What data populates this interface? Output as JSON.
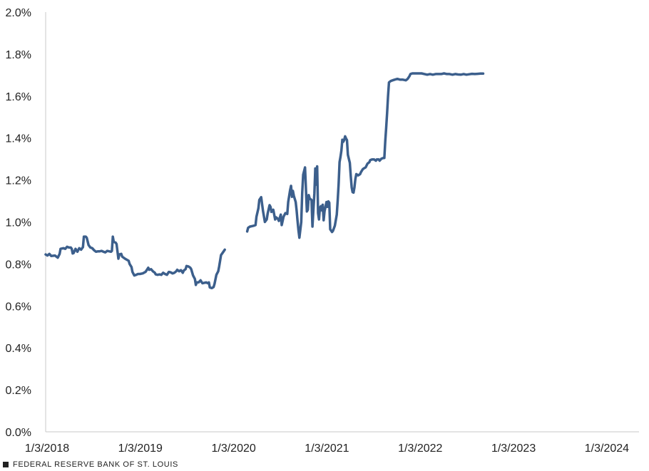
{
  "chart_data": {
    "type": "line",
    "title": "",
    "xlabel": "",
    "ylabel": "",
    "ylim": [
      0,
      2.0
    ],
    "grid": false,
    "legend": "none",
    "y_ticks": [
      "0.0%",
      "0.2%",
      "0.4%",
      "0.6%",
      "0.8%",
      "1.0%",
      "1.2%",
      "1.4%",
      "1.6%",
      "1.8%",
      "2.0%"
    ],
    "x_ticks": [
      "1/3/2018",
      "1/3/2019",
      "1/3/2020",
      "1/3/2021",
      "1/3/2022",
      "1/3/2023",
      "1/3/2024"
    ],
    "x_range": [
      2018.0,
      2024.36
    ],
    "series": [
      {
        "color": "#3c5f8c",
        "segments": [
          [
            [
              2018.0,
              0.845
            ],
            [
              2018.02,
              0.84
            ],
            [
              2018.04,
              0.848
            ],
            [
              2018.06,
              0.838
            ],
            [
              2018.1,
              0.84
            ],
            [
              2018.13,
              0.83
            ],
            [
              2018.15,
              0.848
            ],
            [
              2018.16,
              0.872
            ],
            [
              2018.19,
              0.875
            ],
            [
              2018.21,
              0.872
            ],
            [
              2018.23,
              0.882
            ],
            [
              2018.25,
              0.878
            ],
            [
              2018.27,
              0.878
            ],
            [
              2018.28,
              0.872
            ],
            [
              2018.29,
              0.85
            ],
            [
              2018.3,
              0.852
            ],
            [
              2018.32,
              0.872
            ],
            [
              2018.34,
              0.858
            ],
            [
              2018.36,
              0.875
            ],
            [
              2018.38,
              0.868
            ],
            [
              2018.4,
              0.88
            ],
            [
              2018.41,
              0.93
            ],
            [
              2018.43,
              0.93
            ],
            [
              2018.44,
              0.925
            ],
            [
              2018.46,
              0.89
            ],
            [
              2018.48,
              0.878
            ],
            [
              2018.5,
              0.875
            ],
            [
              2018.52,
              0.865
            ],
            [
              2018.54,
              0.858
            ],
            [
              2018.56,
              0.86
            ],
            [
              2018.58,
              0.86
            ],
            [
              2018.6,
              0.862
            ],
            [
              2018.62,
              0.858
            ],
            [
              2018.64,
              0.855
            ],
            [
              2018.66,
              0.862
            ],
            [
              2018.68,
              0.86
            ],
            [
              2018.7,
              0.858
            ],
            [
              2018.71,
              0.862
            ],
            [
              2018.72,
              0.93
            ],
            [
              2018.73,
              0.905
            ],
            [
              2018.75,
              0.902
            ],
            [
              2018.76,
              0.895
            ],
            [
              2018.77,
              0.86
            ],
            [
              2018.78,
              0.825
            ],
            [
              2018.79,
              0.845
            ],
            [
              2018.81,
              0.848
            ],
            [
              2018.82,
              0.835
            ],
            [
              2018.85,
              0.825
            ],
            [
              2018.87,
              0.82
            ],
            [
              2018.89,
              0.815
            ],
            [
              2018.9,
              0.8
            ],
            [
              2018.92,
              0.785
            ],
            [
              2018.93,
              0.762
            ],
            [
              2018.95,
              0.745
            ],
            [
              2018.97,
              0.748
            ],
            [
              2018.99,
              0.752
            ],
            [
              2019.01,
              0.752
            ],
            [
              2019.04,
              0.755
            ],
            [
              2019.07,
              0.762
            ],
            [
              2019.09,
              0.775
            ],
            [
              2019.1,
              0.782
            ],
            [
              2019.11,
              0.772
            ],
            [
              2019.13,
              0.775
            ],
            [
              2019.15,
              0.765
            ],
            [
              2019.17,
              0.758
            ],
            [
              2019.18,
              0.75
            ],
            [
              2019.2,
              0.748
            ],
            [
              2019.22,
              0.75
            ],
            [
              2019.24,
              0.748
            ],
            [
              2019.26,
              0.758
            ],
            [
              2019.28,
              0.752
            ],
            [
              2019.3,
              0.748
            ],
            [
              2019.32,
              0.762
            ],
            [
              2019.34,
              0.76
            ],
            [
              2019.36,
              0.755
            ],
            [
              2019.38,
              0.758
            ],
            [
              2019.4,
              0.765
            ],
            [
              2019.41,
              0.772
            ],
            [
              2019.43,
              0.765
            ],
            [
              2019.45,
              0.77
            ],
            [
              2019.47,
              0.758
            ],
            [
              2019.48,
              0.768
            ],
            [
              2019.5,
              0.775
            ],
            [
              2019.51,
              0.79
            ],
            [
              2019.53,
              0.788
            ],
            [
              2019.55,
              0.782
            ],
            [
              2019.56,
              0.775
            ],
            [
              2019.58,
              0.745
            ],
            [
              2019.6,
              0.728
            ],
            [
              2019.61,
              0.7
            ],
            [
              2019.62,
              0.712
            ],
            [
              2019.64,
              0.712
            ],
            [
              2019.66,
              0.722
            ],
            [
              2019.68,
              0.708
            ],
            [
              2019.7,
              0.71
            ],
            [
              2019.72,
              0.712
            ],
            [
              2019.74,
              0.708
            ],
            [
              2019.75,
              0.712
            ],
            [
              2019.76,
              0.688
            ],
            [
              2019.78,
              0.685
            ],
            [
              2019.8,
              0.69
            ],
            [
              2019.81,
              0.705
            ],
            [
              2019.83,
              0.748
            ],
            [
              2019.85,
              0.765
            ],
            [
              2019.86,
              0.788
            ],
            [
              2019.87,
              0.815
            ],
            [
              2019.88,
              0.842
            ],
            [
              2019.9,
              0.855
            ],
            [
              2019.92,
              0.868
            ]
          ],
          [
            [
              2020.16,
              0.955
            ],
            [
              2020.17,
              0.972
            ],
            [
              2020.19,
              0.978
            ],
            [
              2020.21,
              0.98
            ],
            [
              2020.23,
              0.982
            ],
            [
              2020.25,
              0.985
            ],
            [
              2020.26,
              1.025
            ],
            [
              2020.28,
              1.065
            ],
            [
              2020.29,
              1.105
            ],
            [
              2020.31,
              1.118
            ],
            [
              2020.33,
              1.052
            ],
            [
              2020.35,
              1.0
            ],
            [
              2020.37,
              1.012
            ],
            [
              2020.38,
              1.04
            ],
            [
              2020.4,
              1.08
            ],
            [
              2020.41,
              1.072
            ],
            [
              2020.42,
              1.048
            ],
            [
              2020.44,
              1.058
            ],
            [
              2020.46,
              1.012
            ],
            [
              2020.47,
              1.022
            ],
            [
              2020.49,
              1.015
            ],
            [
              2020.5,
              1.005
            ],
            [
              2020.52,
              1.035
            ],
            [
              2020.53,
              0.985
            ],
            [
              2020.55,
              1.025
            ],
            [
              2020.57,
              1.042
            ],
            [
              2020.59,
              1.038
            ],
            [
              2020.6,
              1.095
            ],
            [
              2020.62,
              1.15
            ],
            [
              2020.63,
              1.172
            ],
            [
              2020.64,
              1.12
            ],
            [
              2020.65,
              1.148
            ],
            [
              2020.66,
              1.125
            ],
            [
              2020.68,
              1.095
            ],
            [
              2020.69,
              1.055
            ],
            [
              2020.7,
              1.005
            ],
            [
              2020.71,
              0.96
            ],
            [
              2020.72,
              0.925
            ],
            [
              2020.74,
              1.0
            ],
            [
              2020.75,
              1.135
            ],
            [
              2020.76,
              1.225
            ],
            [
              2020.78,
              1.26
            ],
            [
              2020.79,
              1.155
            ],
            [
              2020.8,
              1.05
            ],
            [
              2020.81,
              1.058
            ],
            [
              2020.82,
              1.128
            ],
            [
              2020.83,
              1.112
            ],
            [
              2020.85,
              1.105
            ],
            [
              2020.86,
              0.978
            ],
            [
              2020.87,
              1.055
            ],
            [
              2020.88,
              1.135
            ],
            [
              2020.89,
              1.255
            ],
            [
              2020.9,
              1.178
            ],
            [
              2020.91,
              1.265
            ],
            [
              2020.92,
              1.042
            ],
            [
              2020.93,
              1.012
            ],
            [
              2020.94,
              1.068
            ],
            [
              2020.95,
              1.075
            ],
            [
              2020.96,
              1.055
            ],
            [
              2020.97,
              1.082
            ],
            [
              2020.98,
              1.008
            ],
            [
              2020.99,
              1.052
            ],
            [
              2021.01,
              1.095
            ],
            [
              2021.02,
              1.072
            ],
            [
              2021.03,
              1.098
            ],
            [
              2021.04,
              1.092
            ],
            [
              2021.05,
              0.965
            ],
            [
              2021.07,
              0.952
            ],
            [
              2021.08,
              0.958
            ],
            [
              2021.1,
              0.982
            ],
            [
              2021.12,
              1.035
            ],
            [
              2021.13,
              1.102
            ],
            [
              2021.14,
              1.18
            ],
            [
              2021.15,
              1.285
            ],
            [
              2021.16,
              1.31
            ],
            [
              2021.17,
              1.34
            ],
            [
              2021.18,
              1.392
            ],
            [
              2021.19,
              1.382
            ],
            [
              2021.2,
              1.39
            ],
            [
              2021.21,
              1.408
            ],
            [
              2021.22,
              1.398
            ],
            [
              2021.23,
              1.39
            ],
            [
              2021.24,
              1.32
            ],
            [
              2021.26,
              1.282
            ],
            [
              2021.27,
              1.22
            ],
            [
              2021.28,
              1.165
            ],
            [
              2021.29,
              1.142
            ],
            [
              2021.3,
              1.14
            ],
            [
              2021.31,
              1.165
            ],
            [
              2021.32,
              1.205
            ],
            [
              2021.33,
              1.228
            ],
            [
              2021.35,
              1.222
            ],
            [
              2021.37,
              1.228
            ],
            [
              2021.38,
              1.238
            ],
            [
              2021.4,
              1.252
            ],
            [
              2021.41,
              1.255
            ],
            [
              2021.43,
              1.26
            ],
            [
              2021.45,
              1.278
            ],
            [
              2021.47,
              1.285
            ],
            [
              2021.48,
              1.295
            ],
            [
              2021.5,
              1.298
            ],
            [
              2021.52,
              1.298
            ],
            [
              2021.54,
              1.292
            ],
            [
              2021.55,
              1.298
            ],
            [
              2021.57,
              1.298
            ],
            [
              2021.58,
              1.292
            ],
            [
              2021.6,
              1.302
            ],
            [
              2021.62,
              1.305
            ],
            [
              2021.63,
              1.305
            ],
            [
              2021.64,
              1.385
            ],
            [
              2021.65,
              1.45
            ],
            [
              2021.66,
              1.52
            ],
            [
              2021.67,
              1.6
            ],
            [
              2021.68,
              1.665
            ],
            [
              2021.7,
              1.672
            ],
            [
              2021.72,
              1.675
            ],
            [
              2021.74,
              1.678
            ],
            [
              2021.77,
              1.682
            ],
            [
              2021.8,
              1.678
            ],
            [
              2021.83,
              1.678
            ],
            [
              2021.86,
              1.675
            ],
            [
              2021.88,
              1.682
            ],
            [
              2021.9,
              1.695
            ],
            [
              2021.91,
              1.705
            ],
            [
              2021.93,
              1.708
            ],
            [
              2021.96,
              1.708
            ],
            [
              2022.0,
              1.708
            ],
            [
              2022.03,
              1.708
            ],
            [
              2022.06,
              1.705
            ],
            [
              2022.09,
              1.702
            ],
            [
              2022.12,
              1.705
            ],
            [
              2022.15,
              1.702
            ],
            [
              2022.18,
              1.705
            ],
            [
              2022.21,
              1.705
            ],
            [
              2022.24,
              1.705
            ],
            [
              2022.27,
              1.708
            ],
            [
              2022.3,
              1.705
            ],
            [
              2022.33,
              1.705
            ],
            [
              2022.36,
              1.702
            ],
            [
              2022.39,
              1.705
            ],
            [
              2022.42,
              1.703
            ],
            [
              2022.45,
              1.702
            ],
            [
              2022.48,
              1.705
            ],
            [
              2022.51,
              1.702
            ],
            [
              2022.54,
              1.704
            ],
            [
              2022.57,
              1.706
            ],
            [
              2022.6,
              1.705
            ],
            [
              2022.63,
              1.706
            ],
            [
              2022.66,
              1.707
            ],
            [
              2022.69,
              1.707
            ]
          ]
        ]
      }
    ]
  },
  "footer": {
    "source": "FEDERAL RESERVE BANK OF ST. LOUIS"
  }
}
